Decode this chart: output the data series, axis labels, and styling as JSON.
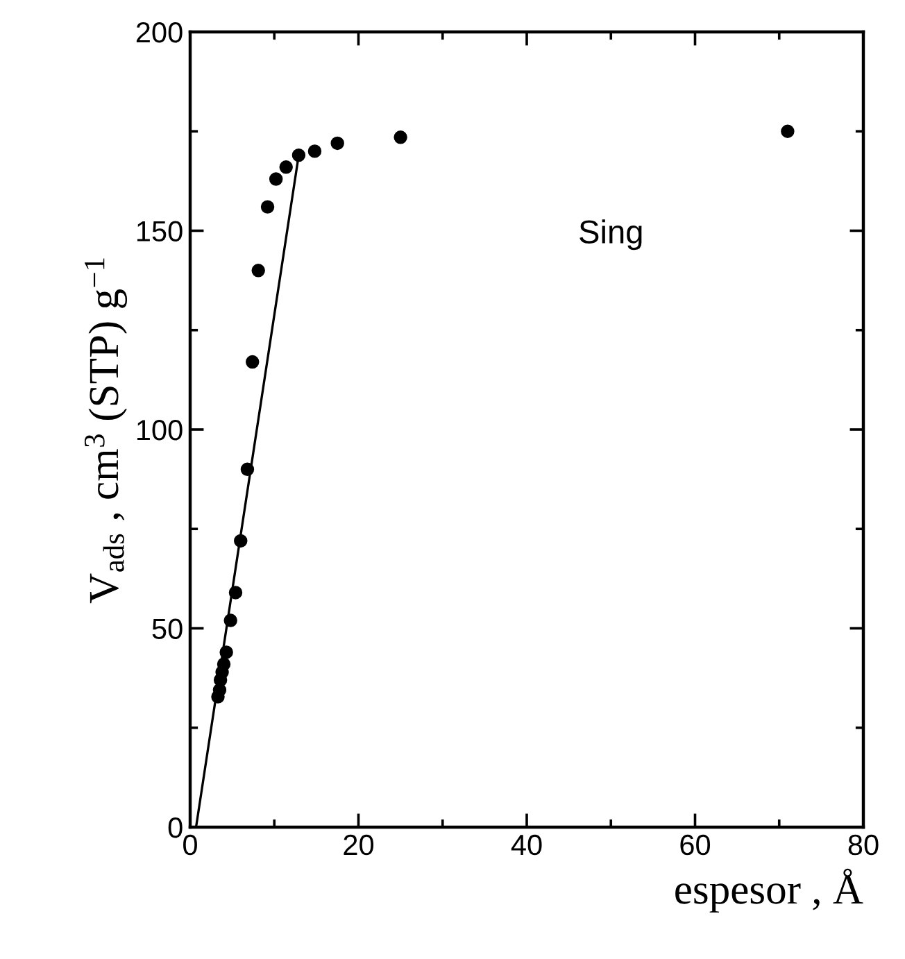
{
  "chart_data": {
    "type": "scatter",
    "xlabel": "espesor , Å",
    "ylabel": "V$_{ads}$ , cm$^{3}$ (STP) g$^{−1}$",
    "xlim": [
      0,
      80
    ],
    "ylim": [
      0,
      200
    ],
    "xticks": [
      0,
      20,
      40,
      60,
      80
    ],
    "yticks": [
      0,
      50,
      100,
      150,
      200
    ],
    "grid": false,
    "legend": false,
    "marker": "circle",
    "annotations": [
      "Sing"
    ],
    "series": [
      {
        "color": "#000000",
        "x": [
          3.3,
          3.5,
          3.6,
          3.8,
          4.0,
          4.3,
          4.8,
          5.4,
          6.0,
          6.8,
          7.4,
          8.1,
          9.2,
          10.2,
          11.4,
          12.9,
          14.8,
          17.5,
          25,
          71
        ],
        "values": [
          32.8,
          34.5,
          37,
          39,
          41,
          44,
          52,
          59,
          72,
          90,
          117,
          140,
          156,
          163,
          166,
          169,
          170,
          172,
          173.5,
          175
        ]
      },
      {
        "type": "line",
        "color": "#000000",
        "marker": "none",
        "line_style": "solid",
        "x": [
          0.7,
          12.9
        ],
        "values": [
          0,
          169
        ]
      }
    ]
  }
}
